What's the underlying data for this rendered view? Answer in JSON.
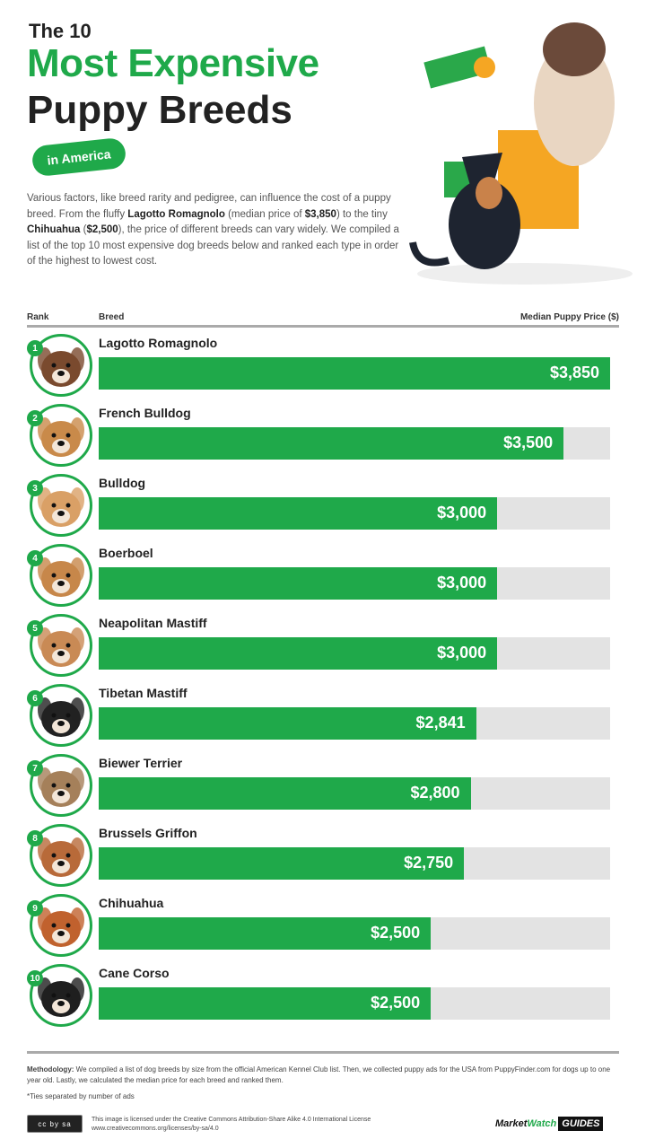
{
  "title": {
    "line1": "The 10",
    "line2": "Most Expensive",
    "line3": "Puppy Breeds",
    "tag": "in America"
  },
  "intro": {
    "p1": "Various factors, like breed rarity and pedigree, can influence the cost of a puppy breed. From the fluffy ",
    "b1": "Lagotto Romagnolo",
    "p2": " (median price of ",
    "b2": "$3,850",
    "p3": ") to the tiny ",
    "b3": "Chihuahua",
    "p4": " (",
    "b4": "$2,500",
    "p5": "), the price of different breeds can vary widely. We compiled a list of the top 10 most expensive dog breeds below and ranked each type in order of the highest to lowest cost."
  },
  "chart_data": {
    "type": "bar",
    "orientation": "horizontal",
    "headers": {
      "rank": "Rank",
      "breed": "Breed",
      "value": "Median Puppy Price ($)"
    },
    "xlim": [
      0,
      3850
    ],
    "colors": {
      "bar": "#1fa94a",
      "track": "#e3e3e3"
    },
    "rows": [
      {
        "rank": "1",
        "breed": "Lagotto Romagnolo",
        "value": 3850,
        "label": "$3,850",
        "dog": "#7a4a2e"
      },
      {
        "rank": "2",
        "breed": "French Bulldog",
        "value": 3500,
        "label": "$3,500",
        "dog": "#c98a4a"
      },
      {
        "rank": "3",
        "breed": "Bulldog",
        "value": 3000,
        "label": "$3,000",
        "dog": "#d9a066"
      },
      {
        "rank": "4",
        "breed": "Boerboel",
        "value": 3000,
        "label": "$3,000",
        "dog": "#c7874a"
      },
      {
        "rank": "5",
        "breed": "Neapolitan Mastiff",
        "value": 3000,
        "label": "$3,000",
        "dog": "#c98a55"
      },
      {
        "rank": "6",
        "breed": "Tibetan Mastiff",
        "value": 2841,
        "label": "$2,841",
        "dog": "#222222"
      },
      {
        "rank": "7",
        "breed": "Biewer Terrier",
        "value": 2800,
        "label": "$2,800",
        "dog": "#a5805a"
      },
      {
        "rank": "8",
        "breed": "Brussels Griffon",
        "value": 2750,
        "label": "$2,750",
        "dog": "#b86a3a"
      },
      {
        "rank": "9",
        "breed": "Chihuahua",
        "value": 2500,
        "label": "$2,500",
        "dog": "#c0622e"
      },
      {
        "rank": "10",
        "breed": "Cane Corso",
        "value": 2500,
        "label": "$2,500",
        "dog": "#1f1f1f"
      }
    ]
  },
  "footer": {
    "meth_label": "Methodology:",
    "meth_text": " We compiled a list of dog breeds by size from the official American Kennel Club list. Then, we collected puppy ads for the USA from PuppyFinder.com for dogs up to one year old. Lastly, we calculated the median price for each breed and ranked them.",
    "ties": "*Ties separated by number of ads",
    "license1": "This image is licensed under the Creative Commons Attribution-Share Alike 4.0 International License",
    "license2": "www.creativecommons.org/licenses/by-sa/4.0",
    "cc_badge": "cc by sa",
    "brand1": "Market",
    "brand2": "Watch",
    "brand3": "GUIDES"
  }
}
